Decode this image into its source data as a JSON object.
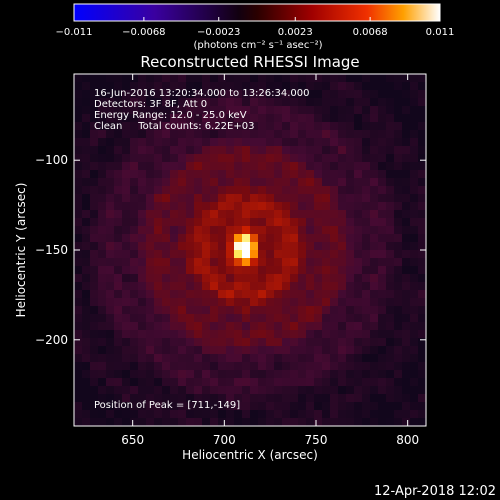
{
  "chart_data": {
    "type": "heatmap",
    "title": "Reconstructed RHESSI Image",
    "xlabel": "Heliocentric X (arcsec)",
    "ylabel": "Heliocentric Y (arcsec)",
    "xlim": [
      618,
      810
    ],
    "ylim": [
      -248,
      -52
    ],
    "xticks": [
      650,
      700,
      750,
      800
    ],
    "yticks": [
      -100,
      -150,
      -200
    ],
    "peak": [
      711,
      -149
    ],
    "colorbar": {
      "range": [
        -0.011,
        0.011
      ],
      "tick_labels": [
        "−0.011",
        "−0.0068",
        "−0.0023",
        "0.0023",
        "0.0068",
        "0.011"
      ],
      "tick_values": [
        -0.011,
        -0.0068,
        -0.0023,
        0.0023,
        0.0068,
        0.011
      ],
      "unit_label": "(photons cm⁻² s⁻¹ asec⁻²)",
      "colormap": [
        "#0000ff",
        "#3b00a0",
        "#000000",
        "#6b0000",
        "#e01000",
        "#ff9000",
        "#ffffff"
      ]
    },
    "info_lines": [
      "16-Jun-2016 13:20:34.000 to 13:26:34.000",
      "Detectors: 3F 8F, Att 0",
      "Energy Range: 12.0 - 25.0 keV",
      "Clean     Total counts: 6.22E+03"
    ],
    "peak_label": "Position of Peak = [711,-149]"
  },
  "footer": {
    "timestamp": "12-Apr-2018 12:02"
  }
}
